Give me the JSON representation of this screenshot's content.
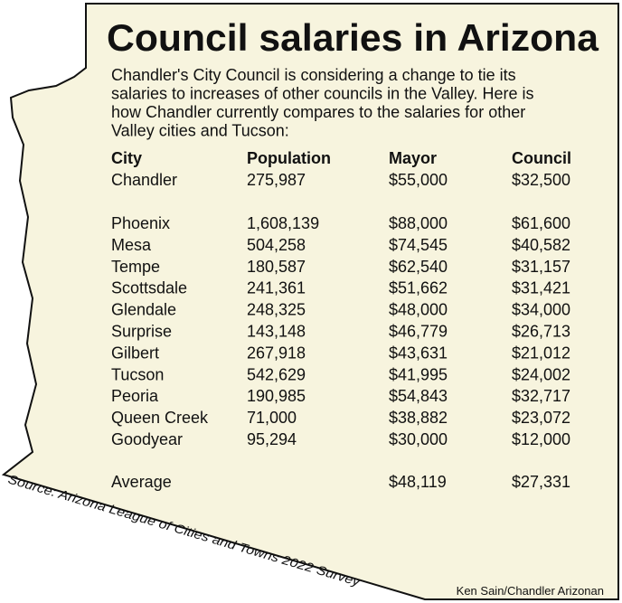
{
  "title": "Council salaries in Arizona",
  "intro_lines": [
    "Chandler's City Council is considering a change to tie its",
    "salaries to increases of other councils in the Valley. Here is",
    "how Chandler currently compares to the salaries for other",
    "Valley cities and Tucson:"
  ],
  "table": {
    "header": [
      "City",
      "Population",
      "Mayor",
      "Council"
    ],
    "featured": [
      "Chandler",
      "275,987",
      "$55,000",
      "$32,500"
    ],
    "rows": [
      [
        "Phoenix",
        "1,608,139",
        "$88,000",
        "$61,600"
      ],
      [
        "Mesa",
        "504,258",
        "$74,545",
        "$40,582"
      ],
      [
        "Tempe",
        "180,587",
        "$62,540",
        "$31,157"
      ],
      [
        "Scottsdale",
        "241,361",
        "$51,662",
        "$31,421"
      ],
      [
        "Glendale",
        "248,325",
        "$48,000",
        "$34,000"
      ],
      [
        "Surprise",
        "143,148",
        "$46,779",
        "$26,713"
      ],
      [
        "Gilbert",
        "267,918",
        "$43,631",
        "$21,012"
      ],
      [
        "Tucson",
        "542,629",
        "$41,995",
        "$24,002"
      ],
      [
        "Peoria",
        "190,985",
        "$54,843",
        "$32,717"
      ],
      [
        "Queen Creek",
        "71,000",
        "$38,882",
        "$23,072"
      ],
      [
        "Goodyear",
        "95,294",
        "$30,000",
        "$12,000"
      ]
    ],
    "average": {
      "label": "Average",
      "mayor": "$48,119",
      "council": "$27,331"
    }
  },
  "source": "Source: Arizona League of Cities and Towns 2022 Survey",
  "credit": "Ken Sain/Chandler Arizonan"
}
